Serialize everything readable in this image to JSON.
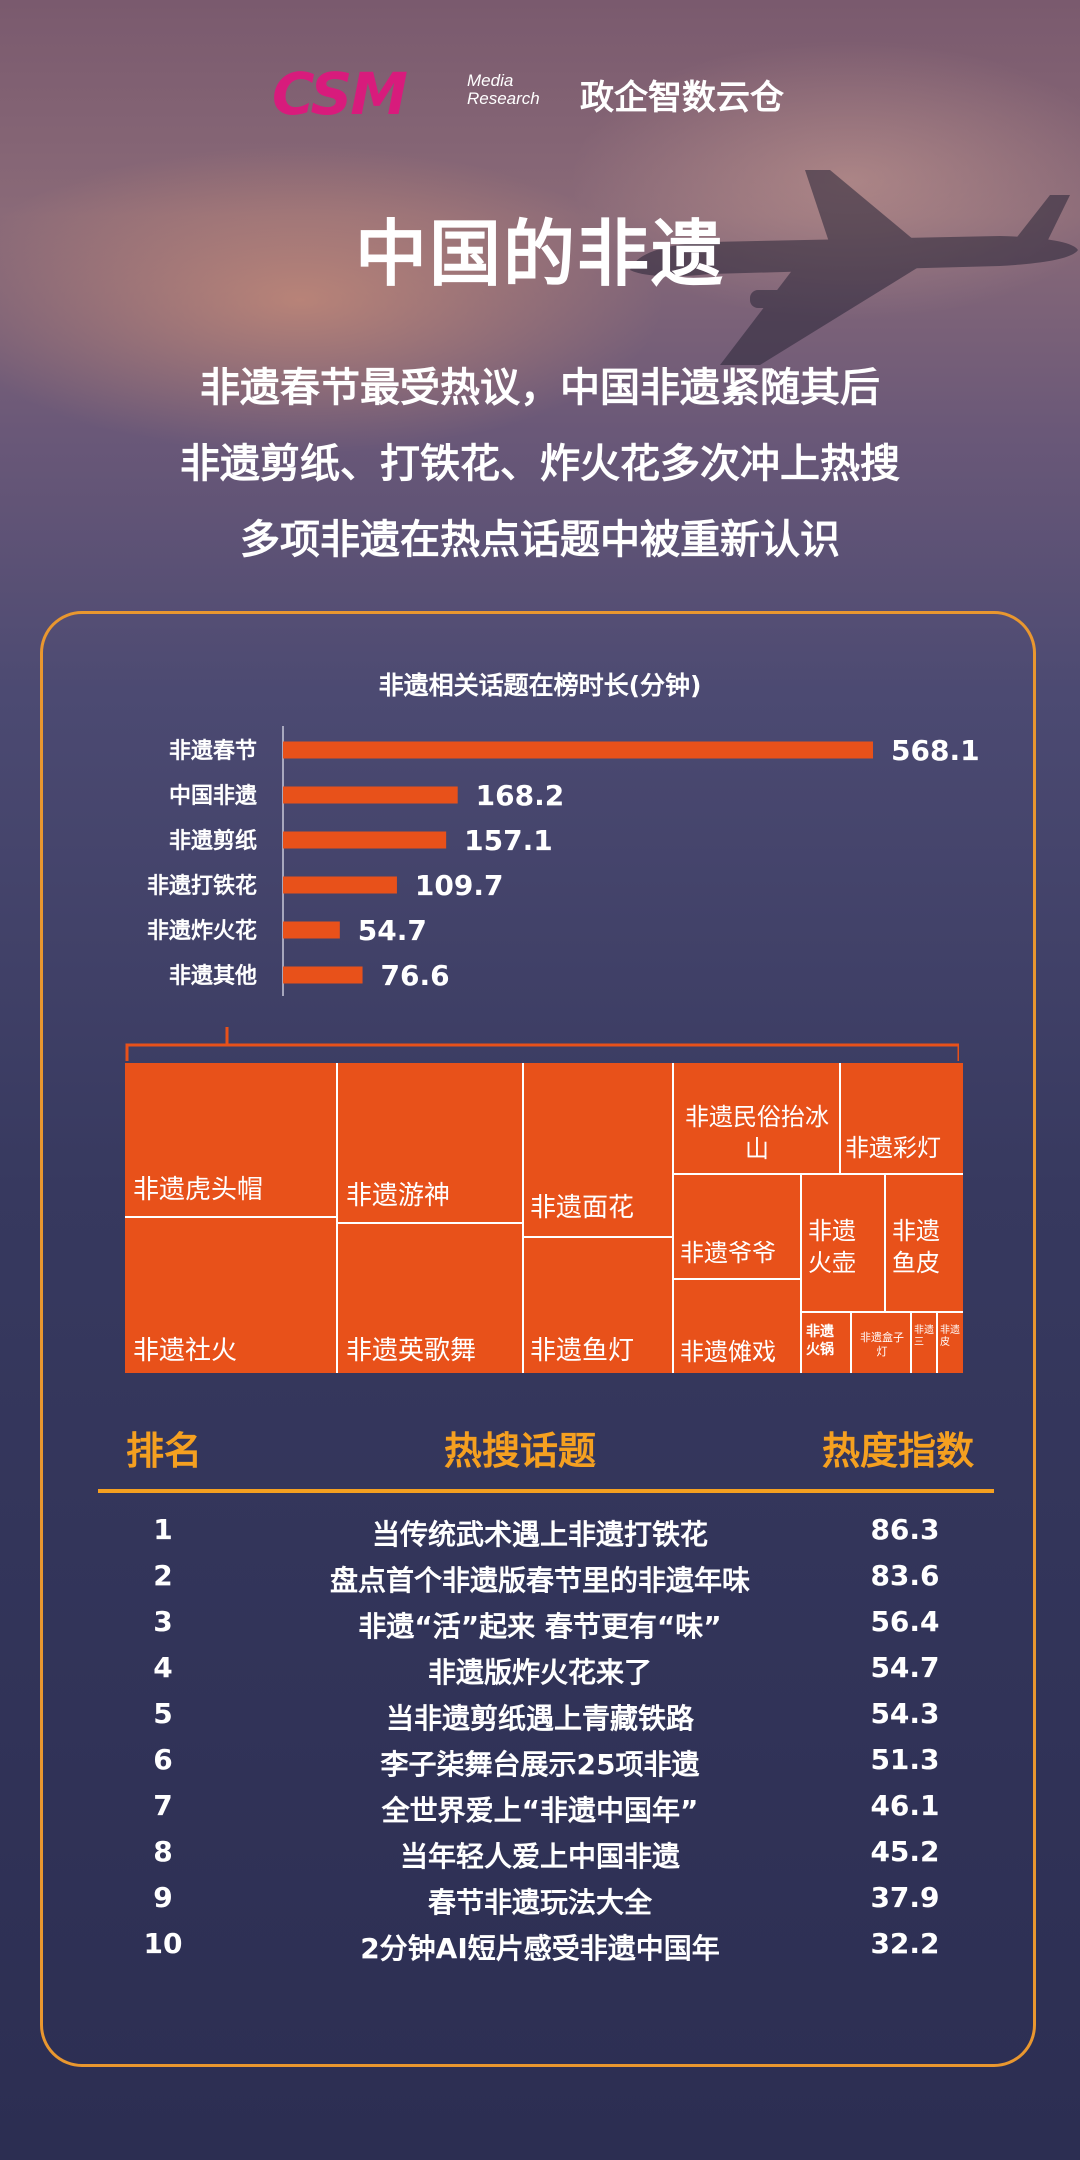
{
  "header": {
    "logo_text": "CSM",
    "logo_sub_line1": "Media",
    "logo_sub_line2": "Research",
    "brand": "政企智数云仓",
    "brand_color": "#d81b7c"
  },
  "title": "中国的非遗",
  "subtitles": [
    "非遗春节最受热议，中国非遗紧随其后",
    "非遗剪纸、打铁花、炸火花多次冲上热搜",
    "多项非遗在热点话题中被重新认识"
  ],
  "chart_data": {
    "type": "bar",
    "orientation": "horizontal",
    "title": "非遗相关话题在榜时长(分钟)",
    "categories": [
      "非遗春节",
      "中国非遗",
      "非遗剪纸",
      "非遗打铁花",
      "非遗炸火花",
      "非遗其他"
    ],
    "values": [
      568.1,
      168.2,
      157.1,
      109.7,
      54.7,
      76.6
    ],
    "value_labels": [
      "568.1",
      "168.2",
      "157.1",
      "109.7",
      "54.7",
      "76.6"
    ],
    "bar_color": "#e8511a",
    "xlim": [
      0,
      568.1
    ]
  },
  "treemap": {
    "items": [
      {
        "label": "非遗虎头帽"
      },
      {
        "label": "非遗社火"
      },
      {
        "label": "非遗游神"
      },
      {
        "label": "非遗英歌舞"
      },
      {
        "label": "非遗面花"
      },
      {
        "label": "非遗鱼灯"
      },
      {
        "label": "非遗民俗抬冰山"
      },
      {
        "label": "非遗彩灯"
      },
      {
        "label": "非遗爷爷"
      },
      {
        "label": "非遗傩戏"
      },
      {
        "label": "非遗火壶"
      },
      {
        "label": "非遗鱼皮"
      },
      {
        "label": "非遗火锅"
      },
      {
        "label": "非遗盒子灯"
      },
      {
        "label": "非遗三"
      },
      {
        "label": "非遗皮"
      }
    ],
    "color": "#e8511a"
  },
  "table": {
    "headers": {
      "rank": "排名",
      "topic": "热搜话题",
      "index": "热度指数"
    },
    "header_color": "#f5a020",
    "rows": [
      {
        "rank": "1",
        "topic": "当传统武术遇上非遗打铁花",
        "index": "86.3"
      },
      {
        "rank": "2",
        "topic": "盘点首个非遗版春节里的非遗年味",
        "index": "83.6"
      },
      {
        "rank": "3",
        "topic": "非遗“活”起来 春节更有“味”",
        "index": "56.4"
      },
      {
        "rank": "4",
        "topic": "非遗版炸火花来了",
        "index": "54.7"
      },
      {
        "rank": "5",
        "topic": "当非遗剪纸遇上青藏铁路",
        "index": "54.3"
      },
      {
        "rank": "6",
        "topic": "李子柒舞台展示25项非遗",
        "index": "51.3"
      },
      {
        "rank": "7",
        "topic": "全世界爱上“非遗中国年”",
        "index": "46.1"
      },
      {
        "rank": "8",
        "topic": "当年轻人爱上中国非遗",
        "index": "45.2"
      },
      {
        "rank": "9",
        "topic": "春节非遗玩法大全",
        "index": "37.9"
      },
      {
        "rank": "10",
        "topic": "2分钟AI短片感受非遗中国年",
        "index": "32.2"
      }
    ]
  }
}
